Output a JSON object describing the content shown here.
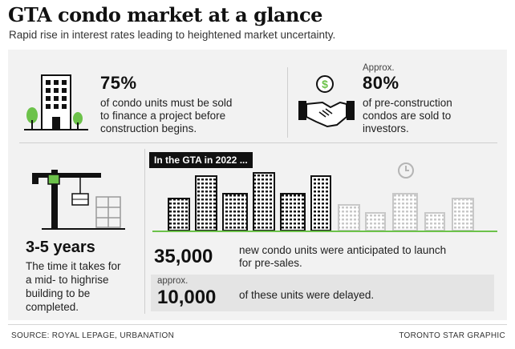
{
  "header": {
    "title": "GTA condo market at a glance",
    "subtitle": "Rapid rise in interest rates leading to heightened market uncertainty."
  },
  "stat_finance": {
    "value": "75%",
    "text_line1": "of condo units must be sold",
    "text_line2": "to finance a project before",
    "text_line3": "construction begins."
  },
  "stat_investors": {
    "prefix": "Approx.",
    "value": "80%",
    "text_line1": "of pre-construction",
    "text_line2": "condos are sold to",
    "text_line3": "investors."
  },
  "stat_time": {
    "value": "3-5 years",
    "text_line1": "The time it takes for",
    "text_line2": "a mid- to highrise",
    "text_line3": "building to be",
    "text_line4": "completed."
  },
  "gta_2022": {
    "tag": "In the GTA in 2022 ...",
    "anticipated_value": "35,000",
    "anticipated_line1": "new condo units were anticipated to launch",
    "anticipated_line2": "for pre-sales.",
    "delayed_prefix": "approx.",
    "delayed_value": "10,000",
    "delayed_text": "of these units were delayed."
  },
  "footer": {
    "source": "SOURCE: ROYAL LEPAGE, URBANATION",
    "credit": "TORONTO STAR GRAPHIC"
  },
  "colors": {
    "accent_green": "#6cc24a",
    "dark": "#111111",
    "panel": "#f2f2f2",
    "faded_building": "#c8c8c8"
  },
  "icons": [
    "building-icon",
    "tree-icon",
    "dollar-icon",
    "handshake-icon",
    "crane-icon",
    "clock-icon"
  ]
}
